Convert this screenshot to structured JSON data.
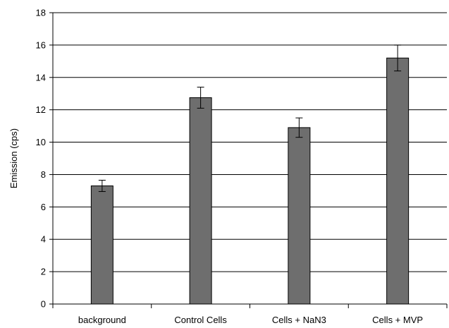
{
  "chart_data": {
    "type": "bar",
    "categories": [
      "background",
      "Control Cells",
      "Cells + NaN3",
      "Cells + MVP"
    ],
    "values": [
      7.3,
      12.75,
      10.9,
      15.2
    ],
    "error": [
      0.35,
      0.65,
      0.6,
      0.8
    ],
    "title": "",
    "xlabel": "",
    "ylabel": "Emission (cps)",
    "ylim": [
      0,
      18
    ],
    "yticks": [
      0,
      2,
      4,
      6,
      8,
      10,
      12,
      14,
      16,
      18
    ],
    "grid": true,
    "bar_color": "#6e6e6e",
    "legend": "none"
  }
}
